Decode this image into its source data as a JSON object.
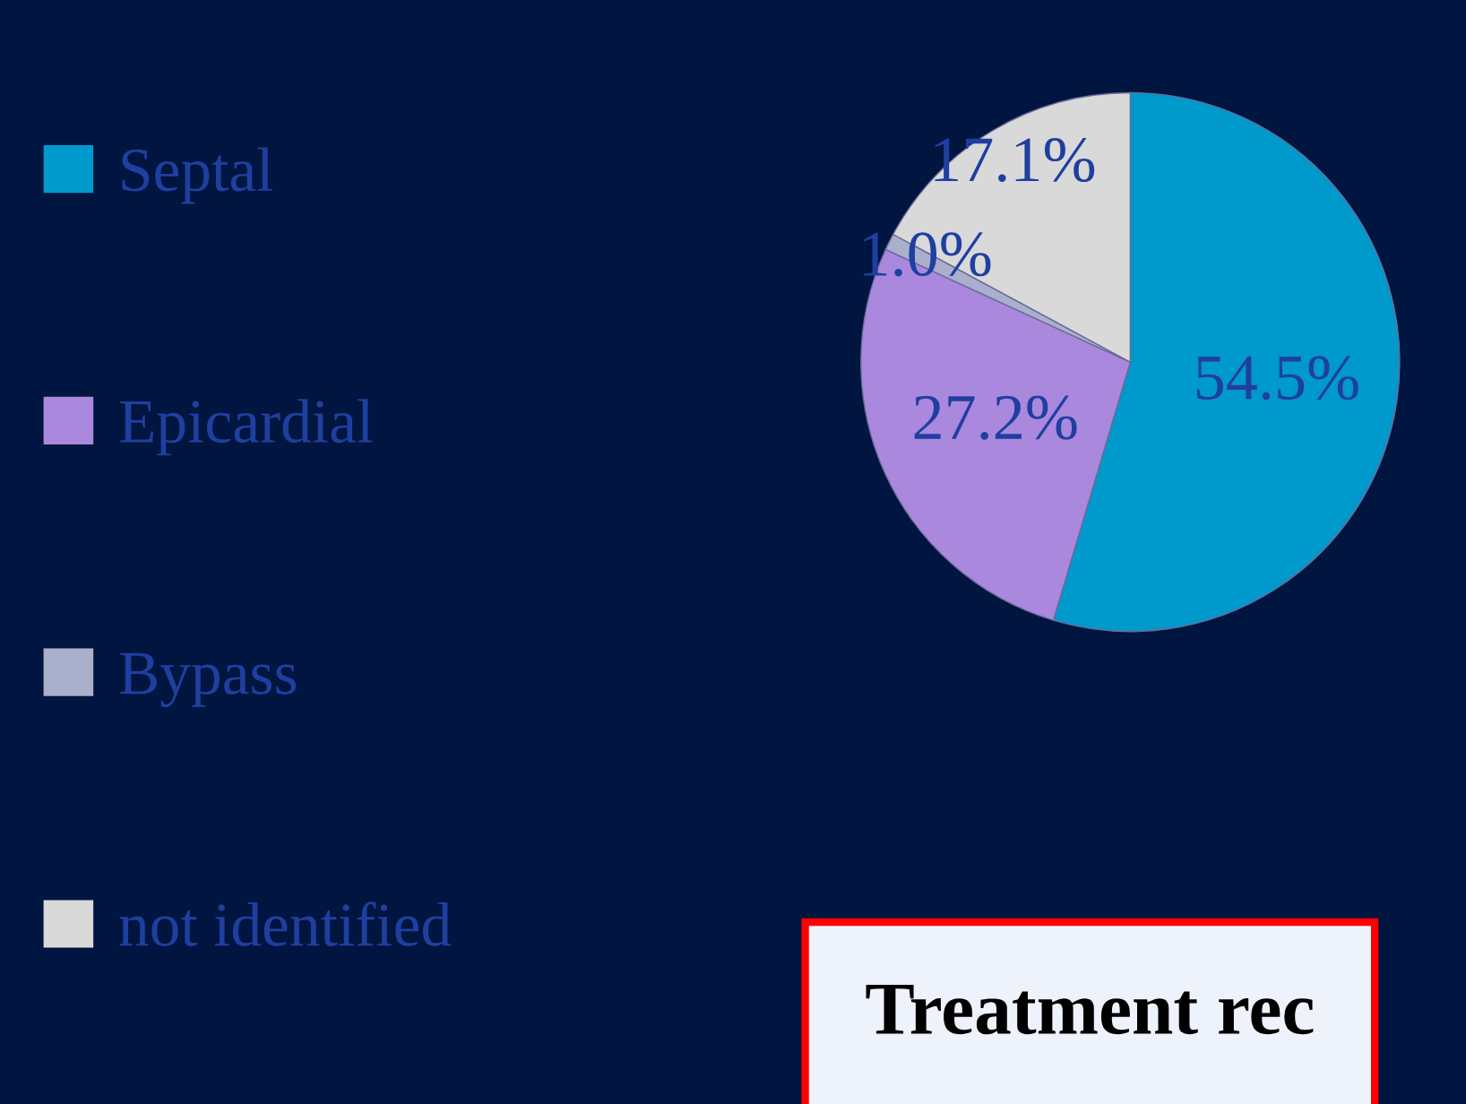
{
  "chart_data": {
    "type": "pie",
    "categories": [
      "Septal",
      "Epicardial",
      "Bypass",
      "not identified"
    ],
    "values": [
      54.5,
      27.2,
      1.0,
      17.1
    ],
    "colors": [
      "#0099cc",
      "#aa88dd",
      "#aab0cc",
      "#d9d9d9"
    ],
    "value_labels": [
      "54.5%",
      "27.2%",
      "1.0%",
      "17.1%"
    ],
    "legend": "left",
    "annotations": [
      "Treatment rec"
    ]
  }
}
